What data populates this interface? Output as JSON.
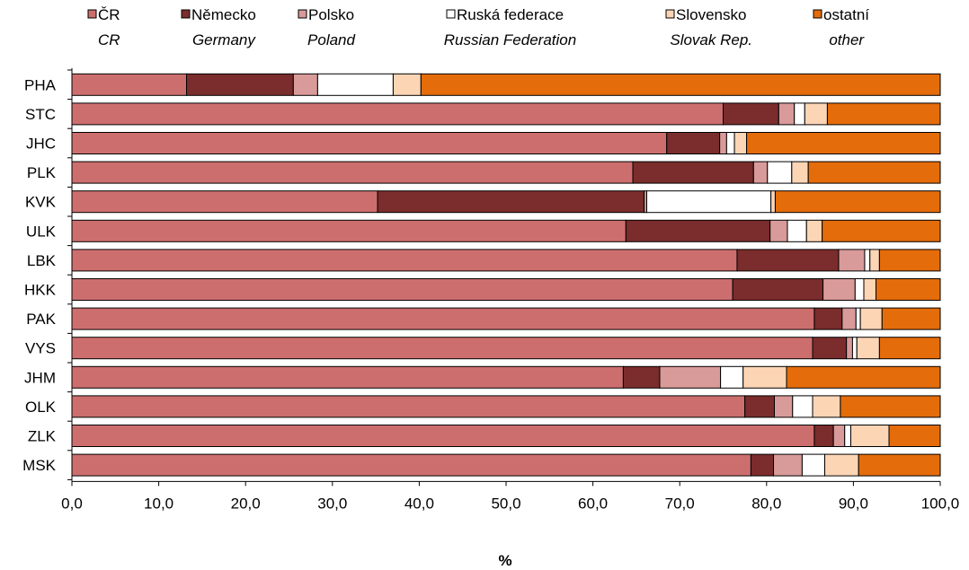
{
  "chart_data": {
    "type": "bar",
    "orientation": "horizontal",
    "stacked": true,
    "title": "",
    "xlabel": "%",
    "ylabel": "",
    "xlim": [
      0,
      100
    ],
    "x_ticks": [
      "0,0",
      "10,0",
      "20,0",
      "30,0",
      "40,0",
      "50,0",
      "60,0",
      "70,0",
      "80,0",
      "90,0",
      "100,0"
    ],
    "grid": false,
    "legend_position": "top",
    "categories": [
      "PHA",
      "STC",
      "JHC",
      "PLK",
      "KVK",
      "ULK",
      "LBK",
      "HKK",
      "PAK",
      "VYS",
      "JHM",
      "OLK",
      "ZLK",
      "MSK"
    ],
    "series": [
      {
        "name": "ČR",
        "name_en": "CR",
        "color": "#cd6e6e",
        "values": [
          13.2,
          75.0,
          68.5,
          64.6,
          35.2,
          63.8,
          76.6,
          76.1,
          85.5,
          85.3,
          63.5,
          77.5,
          85.5,
          78.2
        ]
      },
      {
        "name": "Německo",
        "name_en": "Germany",
        "color": "#7b2c2c",
        "values": [
          12.3,
          6.4,
          6.1,
          13.9,
          30.7,
          16.6,
          11.7,
          10.4,
          3.2,
          3.9,
          4.2,
          3.4,
          2.2,
          2.6
        ]
      },
      {
        "name": "Polsko",
        "name_en": "Poland",
        "color": "#d99a9a",
        "values": [
          2.8,
          1.8,
          0.8,
          1.6,
          0.3,
          2.0,
          3.0,
          3.7,
          1.6,
          0.7,
          7.0,
          2.1,
          1.3,
          3.3
        ]
      },
      {
        "name": "Ruská federace",
        "name_en": "Russian Federation",
        "color": "#ffffff",
        "values": [
          8.7,
          1.2,
          0.9,
          2.8,
          14.3,
          2.2,
          0.6,
          1.0,
          0.5,
          0.5,
          2.6,
          2.3,
          0.7,
          2.6
        ]
      },
      {
        "name": "Slovensko",
        "name_en": "Slovak Rep.",
        "color": "#fcd5b5",
        "values": [
          3.2,
          2.6,
          1.4,
          1.9,
          0.5,
          1.8,
          1.1,
          1.4,
          2.5,
          2.6,
          5.0,
          3.2,
          4.4,
          3.9
        ]
      },
      {
        "name": "ostatní",
        "name_en": "other",
        "color": "#e46c0a",
        "values": [
          59.8,
          13.0,
          22.3,
          15.2,
          19.0,
          13.6,
          7.0,
          7.4,
          6.7,
          7.0,
          17.7,
          11.5,
          5.9,
          9.4
        ]
      }
    ]
  }
}
